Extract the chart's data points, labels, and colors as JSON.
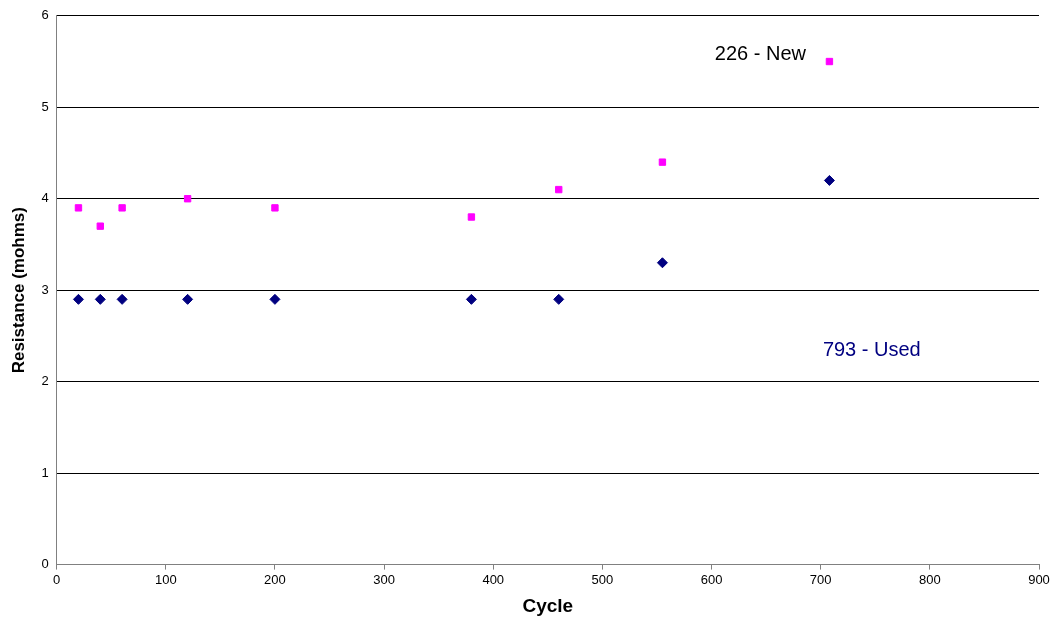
{
  "chart_data": {
    "type": "scatter",
    "xlabel": "Cycle",
    "ylabel": "Resistance (mohms)",
    "x": [
      20,
      40,
      60,
      120,
      200,
      380,
      460,
      555,
      708
    ],
    "series": [
      {
        "name": "226 - New",
        "color": "#ff00ff",
        "marker": "square",
        "values": [
          3.9,
          3.7,
          3.9,
          4.0,
          3.9,
          3.8,
          4.1,
          4.4,
          5.5
        ]
      },
      {
        "name": "793 - Used",
        "color": "#000080",
        "marker": "diamond",
        "values": [
          2.9,
          2.9,
          2.9,
          2.9,
          2.9,
          2.9,
          2.9,
          3.3,
          4.2
        ]
      }
    ],
    "xlim": [
      0,
      900
    ],
    "xticks": [
      0,
      100,
      200,
      300,
      400,
      500,
      600,
      700,
      800,
      900
    ],
    "ylim": [
      0,
      6
    ],
    "yticks": [
      0,
      1,
      2,
      3,
      4,
      5,
      6
    ],
    "grid": "y",
    "legend": false
  }
}
